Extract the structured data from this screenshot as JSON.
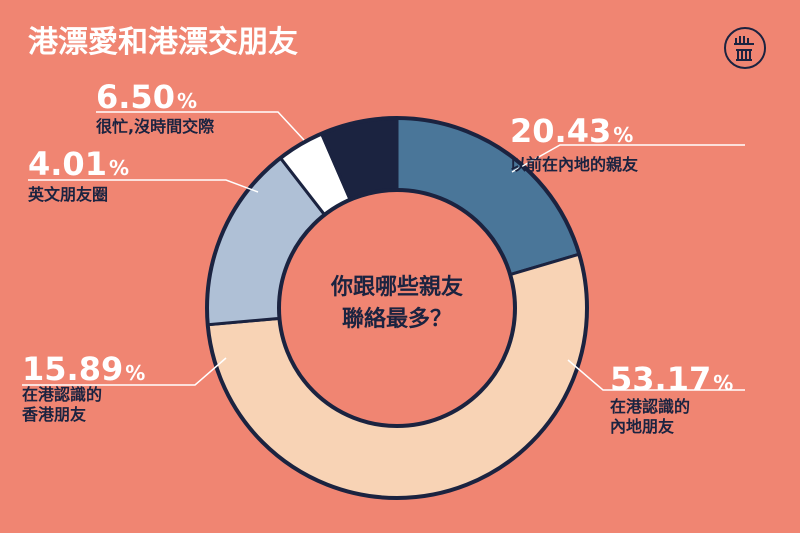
{
  "title": "港漂愛和港漂交朋友",
  "logo": {
    "name": "initium-media-logo",
    "color": "#1B2340"
  },
  "colors": {
    "background": "#F08572",
    "outline": "#1B2340",
    "text_dark": "#1B2340",
    "text_light": "#FFFFFF"
  },
  "chart_data": {
    "type": "pie",
    "variant": "donut",
    "center_label": [
      "你跟哪些親友",
      "聯絡最多？"
    ],
    "slices": [
      {
        "label": "以前在內地的親友",
        "value": 20.43,
        "value_text": "20.43",
        "color": "#4A7699"
      },
      {
        "label": "在港認識的內地朋友",
        "value": 53.17,
        "value_text": "53.17",
        "color": "#F8D3B5"
      },
      {
        "label": "在港認識的香港朋友",
        "value": 15.89,
        "value_text": "15.89",
        "color": "#AFC0D6"
      },
      {
        "label": "英文朋友圈",
        "value": 4.01,
        "value_text": "4.01",
        "color": "#FFFFFF"
      },
      {
        "label": "很忙,沒時間交際",
        "value": 6.5,
        "value_text": "6.50",
        "color": "#1B2340"
      }
    ],
    "callout_lines": [
      [
        "以前在內地的親友"
      ],
      [
        "在港認識的",
        "內地朋友"
      ],
      [
        "在港認識的",
        "香港朋友"
      ],
      [
        "英文朋友圈"
      ],
      [
        "很忙,沒時間交際"
      ]
    ],
    "percent_sign": "%"
  }
}
